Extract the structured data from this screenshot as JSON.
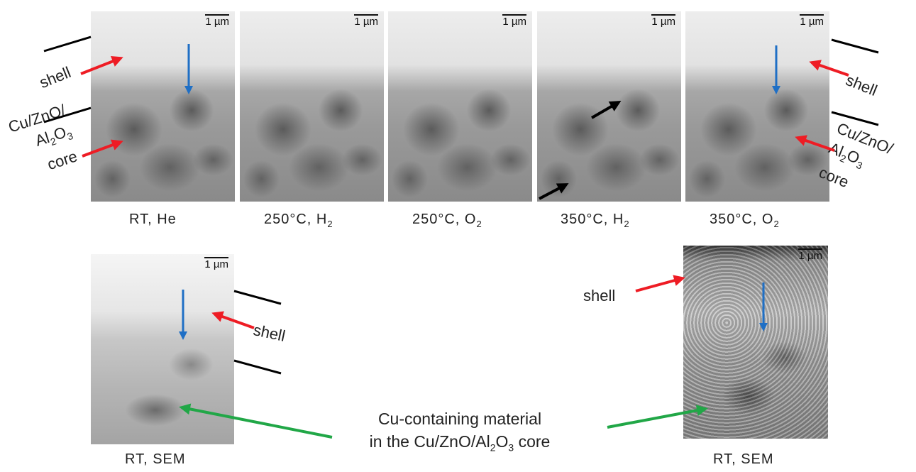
{
  "scalebar": "1 µm",
  "top_row": [
    {
      "label": "RT, He",
      "label_sub": "",
      "label_suffix": ""
    },
    {
      "label": "250°C, H",
      "label_sub": "2",
      "label_suffix": ""
    },
    {
      "label": "250°C, O",
      "label_sub": "2",
      "label_suffix": ""
    },
    {
      "label": "350°C, H",
      "label_sub": "2",
      "label_suffix": ""
    },
    {
      "label": "350°C, O",
      "label_sub": "2",
      "label_suffix": ""
    }
  ],
  "bottom_row": [
    {
      "label": "RT, SEM"
    },
    {
      "label": "RT, SEM"
    }
  ],
  "annotations": {
    "shell": "shell",
    "core_line1": "Cu/ZnO/",
    "core_line2_a": "Al",
    "core_line2_sub1": "2",
    "core_line2_b": "O",
    "core_line2_sub2": "3",
    "core_line3": "core"
  },
  "center_note": {
    "line1": "Cu-containing material",
    "line2_a": "in the Cu/ZnO/Al",
    "line2_sub1": "2",
    "line2_b": "O",
    "line2_sub2": "3",
    "line2_c": " core"
  },
  "colors": {
    "red_arrow": "#ee1c24",
    "blue_arrow": "#1f6fc5",
    "green_arrow": "#21a747",
    "black_arrow": "#000000"
  }
}
